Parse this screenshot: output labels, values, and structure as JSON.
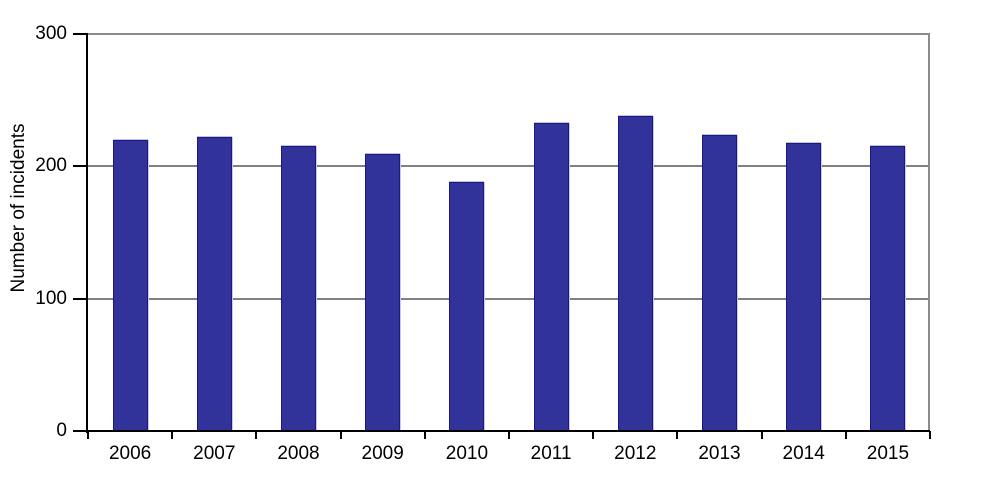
{
  "chart_data": {
    "type": "bar",
    "title": "",
    "categories": [
      "2006",
      "2007",
      "2008",
      "2009",
      "2010",
      "2011",
      "2012",
      "2013",
      "2014",
      "2015"
    ],
    "values": [
      220,
      222,
      215,
      209,
      188,
      233,
      238,
      224,
      218,
      215
    ],
    "xlabel": "",
    "ylabel": "Number of incidents",
    "ylim": [
      0,
      300
    ],
    "yticks": [
      0,
      100,
      200,
      300
    ],
    "grid": "horizontal",
    "legend": "none",
    "colors": {
      "bar_fill": "#32329B",
      "bar_border": "#191980",
      "gridline": "#808080",
      "plot_border": "#8C8C8C",
      "axis": "#000000",
      "text": "#000000",
      "background": "#FFFFFF"
    }
  }
}
